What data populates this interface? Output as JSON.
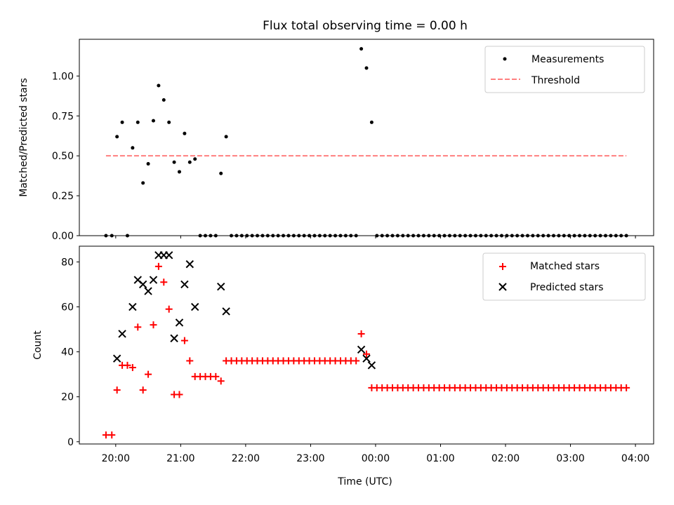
{
  "figure_title": "Flux total observing time = 0.00 h",
  "x_axis": {
    "label": "Time (UTC)",
    "ticks": [
      "20:00",
      "21:00",
      "22:00",
      "23:00",
      "00:00",
      "01:00",
      "02:00",
      "03:00",
      "04:00"
    ]
  },
  "chart_data": [
    {
      "type": "scatter",
      "ylabel": "Matched/Predicted stars",
      "xlim": [
        -0.56,
        8.28
      ],
      "ylim": [
        0.0,
        1.23
      ],
      "yticks": [
        "0.00",
        "0.25",
        "0.50",
        "0.75",
        "1.00"
      ],
      "legend_position": "top-right",
      "series": [
        {
          "name": "Measurements",
          "kind": "dot",
          "color": "#000000",
          "x": [
            -0.15,
            -0.06,
            0.02,
            0.1,
            0.18,
            0.26,
            0.34,
            0.42,
            0.5,
            0.58,
            0.66,
            0.74,
            0.82,
            0.9,
            0.98,
            1.06,
            1.14,
            1.22,
            1.3,
            1.38,
            1.46,
            1.54,
            1.62,
            1.7,
            1.78,
            1.86,
            1.94,
            2.02,
            2.1,
            2.18,
            2.26,
            2.34,
            2.42,
            2.5,
            2.58,
            2.66,
            2.74,
            2.82,
            2.9,
            2.98,
            3.06,
            3.14,
            3.22,
            3.3,
            3.38,
            3.46,
            3.54,
            3.62,
            3.7,
            3.78,
            3.86,
            3.94,
            4.02,
            4.1,
            4.18,
            4.26,
            4.34,
            4.42,
            4.5,
            4.58,
            4.66,
            4.74,
            4.82,
            4.9,
            4.98,
            5.06,
            5.14,
            5.22,
            5.3,
            5.38,
            5.46,
            5.54,
            5.62,
            5.7,
            5.78,
            5.86,
            5.94,
            6.02,
            6.1,
            6.18,
            6.26,
            6.34,
            6.42,
            6.5,
            6.58,
            6.66,
            6.74,
            6.82,
            6.9,
            6.98,
            7.06,
            7.14,
            7.22,
            7.3,
            7.38,
            7.46,
            7.54,
            7.62,
            7.7,
            7.78,
            7.86
          ],
          "y": [
            0.0,
            0.0,
            0.62,
            0.71,
            0.0,
            0.55,
            0.71,
            0.33,
            0.45,
            0.72,
            0.94,
            0.85,
            0.71,
            0.46,
            0.4,
            0.64,
            0.46,
            0.48,
            0.0,
            0.0,
            0.0,
            0.0,
            0.39,
            0.62,
            0.0,
            0.0,
            0.0,
            0.0,
            0.0,
            0.0,
            0.0,
            0.0,
            0.0,
            0.0,
            0.0,
            0.0,
            0.0,
            0.0,
            0.0,
            0.0,
            0.0,
            0.0,
            0.0,
            0.0,
            0.0,
            0.0,
            0.0,
            0.0,
            0.0,
            1.17,
            1.05,
            0.71,
            0.0,
            0.0,
            0.0,
            0.0,
            0.0,
            0.0,
            0.0,
            0.0,
            0.0,
            0.0,
            0.0,
            0.0,
            0.0,
            0.0,
            0.0,
            0.0,
            0.0,
            0.0,
            0.0,
            0.0,
            0.0,
            0.0,
            0.0,
            0.0,
            0.0,
            0.0,
            0.0,
            0.0,
            0.0,
            0.0,
            0.0,
            0.0,
            0.0,
            0.0,
            0.0,
            0.0,
            0.0,
            0.0,
            0.0,
            0.0,
            0.0,
            0.0,
            0.0,
            0.0,
            0.0,
            0.0,
            0.0,
            0.0,
            0.0
          ]
        },
        {
          "name": "Threshold",
          "kind": "dashed-line",
          "color": "#ff7f7f",
          "x": [
            -0.15,
            7.86
          ],
          "y": [
            0.5,
            0.5
          ]
        }
      ]
    },
    {
      "type": "scatter",
      "ylabel": "Count",
      "xlim": [
        -0.56,
        8.28
      ],
      "ylim": [
        -1,
        87
      ],
      "yticks": [
        "0",
        "20",
        "40",
        "60",
        "80"
      ],
      "legend_position": "top-right",
      "series": [
        {
          "name": "Matched stars",
          "kind": "plus",
          "color": "#ff0000",
          "x": [
            -0.15,
            -0.06,
            0.02,
            0.1,
            0.18,
            0.26,
            0.34,
            0.42,
            0.5,
            0.58,
            0.66,
            0.74,
            0.82,
            0.9,
            0.98,
            1.06,
            1.14,
            1.22,
            1.3,
            1.38,
            1.46,
            1.54,
            1.62,
            1.7,
            1.78,
            1.86,
            1.94,
            2.02,
            2.1,
            2.18,
            2.26,
            2.34,
            2.42,
            2.5,
            2.58,
            2.66,
            2.74,
            2.82,
            2.9,
            2.98,
            3.06,
            3.14,
            3.22,
            3.3,
            3.38,
            3.46,
            3.54,
            3.62,
            3.7,
            3.78,
            3.86,
            3.94,
            4.02,
            4.1,
            4.18,
            4.26,
            4.34,
            4.42,
            4.5,
            4.58,
            4.66,
            4.74,
            4.82,
            4.9,
            4.98,
            5.06,
            5.14,
            5.22,
            5.3,
            5.38,
            5.46,
            5.54,
            5.62,
            5.7,
            5.78,
            5.86,
            5.94,
            6.02,
            6.1,
            6.18,
            6.26,
            6.34,
            6.42,
            6.5,
            6.58,
            6.66,
            6.74,
            6.82,
            6.9,
            6.98,
            7.06,
            7.14,
            7.22,
            7.3,
            7.38,
            7.46,
            7.54,
            7.62,
            7.7,
            7.78,
            7.86
          ],
          "y": [
            3,
            3,
            23,
            34,
            34,
            33,
            51,
            23,
            30,
            52,
            78,
            71,
            59,
            21,
            21,
            45,
            36,
            29,
            29,
            29,
            29,
            29,
            27,
            36,
            36,
            36,
            36,
            36,
            36,
            36,
            36,
            36,
            36,
            36,
            36,
            36,
            36,
            36,
            36,
            36,
            36,
            36,
            36,
            36,
            36,
            36,
            36,
            36,
            36,
            48,
            39,
            24,
            24,
            24,
            24,
            24,
            24,
            24,
            24,
            24,
            24,
            24,
            24,
            24,
            24,
            24,
            24,
            24,
            24,
            24,
            24,
            24,
            24,
            24,
            24,
            24,
            24,
            24,
            24,
            24,
            24,
            24,
            24,
            24,
            24,
            24,
            24,
            24,
            24,
            24,
            24,
            24,
            24,
            24,
            24,
            24,
            24,
            24,
            24,
            24,
            24
          ]
        },
        {
          "name": "Predicted stars",
          "kind": "x",
          "color": "#000000",
          "x": [
            0.02,
            0.1,
            0.26,
            0.34,
            0.42,
            0.5,
            0.58,
            0.66,
            0.74,
            0.82,
            0.9,
            0.98,
            1.06,
            1.14,
            1.22,
            1.62,
            1.7,
            3.78,
            3.86,
            3.94
          ],
          "y": [
            37,
            48,
            60,
            72,
            70,
            67,
            72,
            83,
            83,
            83,
            46,
            53,
            70,
            79,
            60,
            69,
            58,
            41,
            37,
            34
          ]
        }
      ]
    }
  ]
}
